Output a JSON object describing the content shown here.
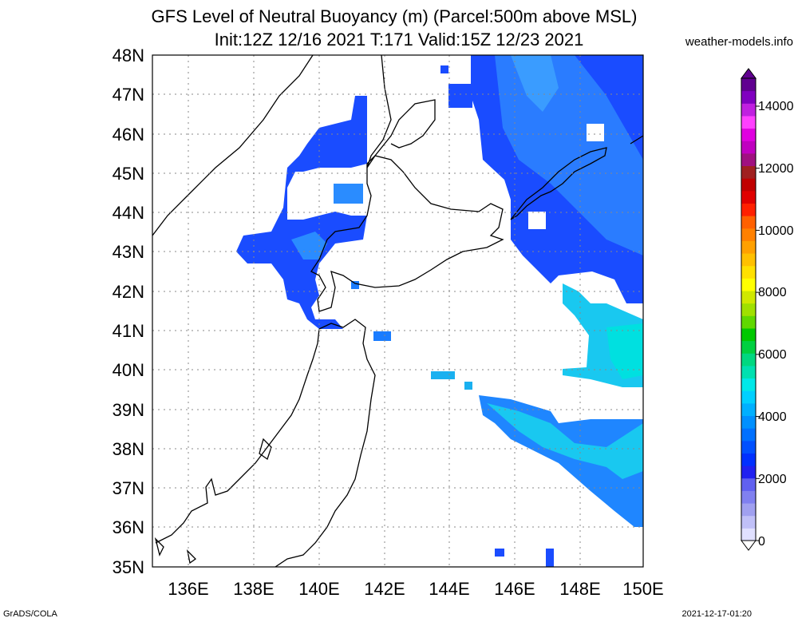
{
  "title_line1": "GFS Level of Neutral Buoyancy (m) (Parcel:500m above MSL)",
  "title_line2": "Init:12Z 12/16 2021 T:171 Valid:15Z 12/23 2021",
  "credit": "weather-models.info",
  "footer_left": "GrADS/COLA",
  "footer_right": "2021-12-17-01:20",
  "map": {
    "lon_range": [
      135,
      150
    ],
    "lat_range": [
      35,
      48
    ],
    "lat_labels": [
      "48N",
      "47N",
      "46N",
      "45N",
      "44N",
      "43N",
      "42N",
      "41N",
      "40N",
      "39N",
      "38N",
      "37N",
      "36N",
      "35N"
    ],
    "lon_labels": [
      "136E",
      "138E",
      "140E",
      "142E",
      "144E",
      "146E",
      "148E",
      "150E"
    ],
    "grid": "dotted"
  },
  "colorbar": {
    "labels": [
      "0",
      "2000",
      "4000",
      "6000",
      "8000",
      "10000",
      "12000",
      "14000"
    ],
    "colors": [
      "#e0e0ff",
      "#c0c0f8",
      "#a0a0f0",
      "#8080f0",
      "#6060f0",
      "#2020f0",
      "#0030ff",
      "#0050ff",
      "#0070ff",
      "#0090ff",
      "#00b0ff",
      "#00d0ff",
      "#00e8e8",
      "#00e0b0",
      "#00d880",
      "#00d040",
      "#00c800",
      "#60d800",
      "#a0e000",
      "#d0e800",
      "#ffff00",
      "#ffe000",
      "#ffc000",
      "#ffa000",
      "#ff8000",
      "#ff6000",
      "#ff2000",
      "#e00000",
      "#c00000",
      "#a02020",
      "#a01080",
      "#c000c0",
      "#e000e0",
      "#ff40ff",
      "#c020e0",
      "#8000c0",
      "#600090"
    ]
  }
}
